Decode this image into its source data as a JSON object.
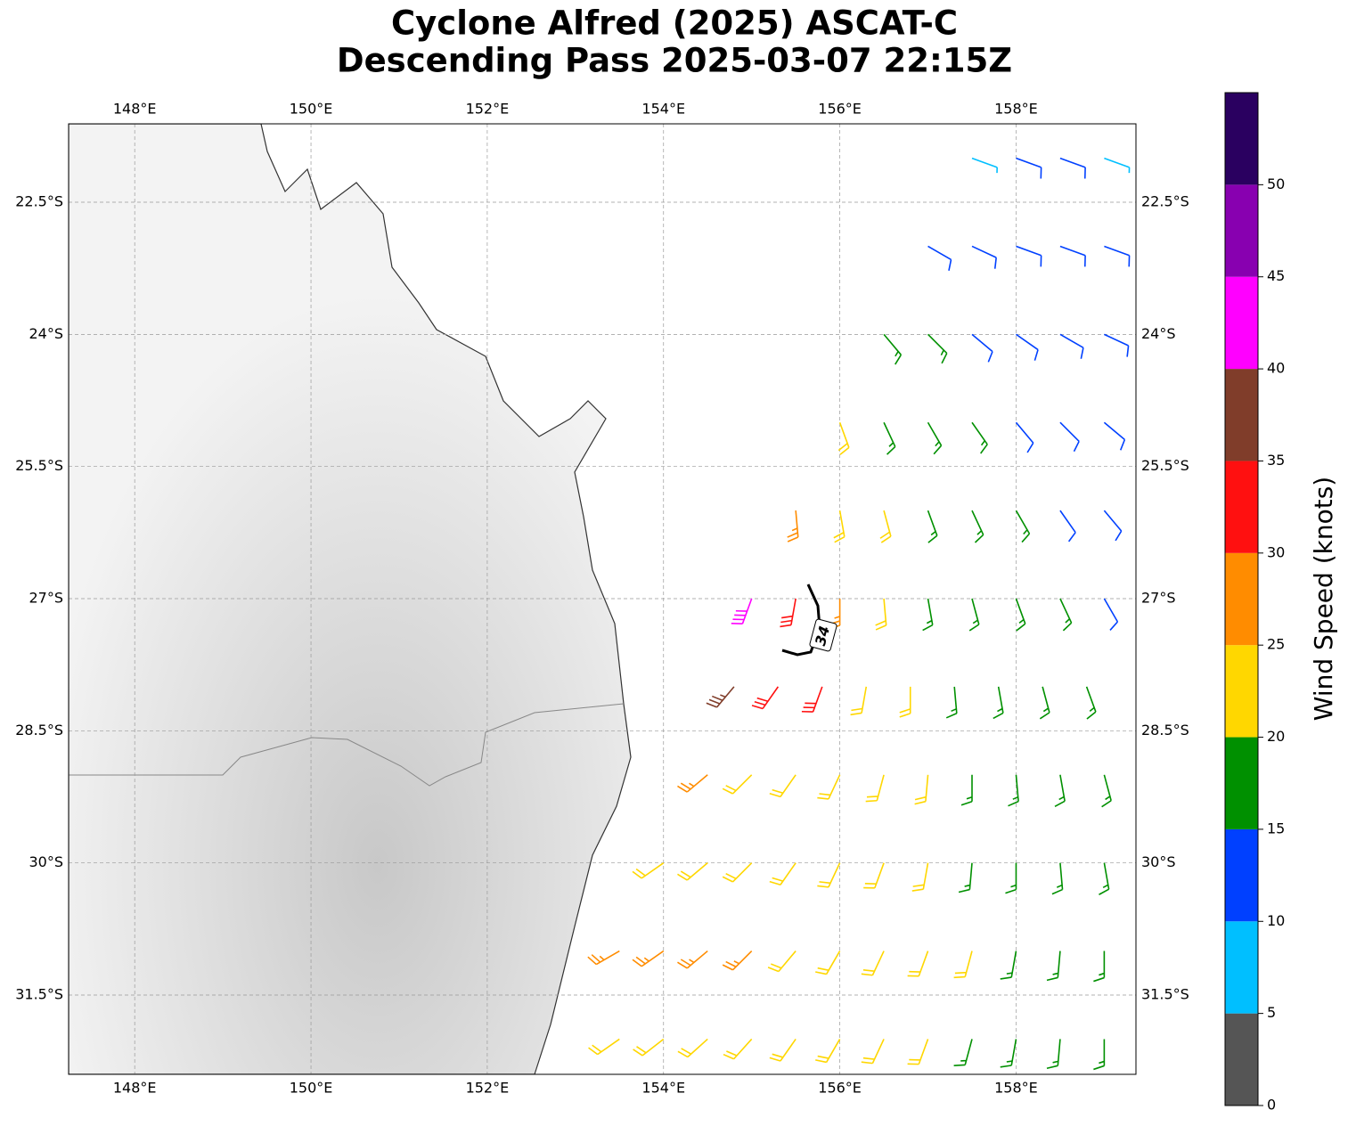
{
  "title": [
    "Cyclone Alfred (2025) ASCAT-C",
    "Descending Pass 2025-03-07 22:15Z"
  ],
  "xlim": [
    147.25,
    159.36
  ],
  "ylim": [
    -32.4,
    -21.61
  ],
  "xticks": [
    {
      "value": 148,
      "label": "148°E"
    },
    {
      "value": 150,
      "label": "150°E"
    },
    {
      "value": 152,
      "label": "152°E"
    },
    {
      "value": 154,
      "label": "154°E"
    },
    {
      "value": 156,
      "label": "156°E"
    },
    {
      "value": 158,
      "label": "158°E"
    }
  ],
  "yticks": [
    {
      "value": -22.5,
      "label": "22.5°S"
    },
    {
      "value": -24,
      "label": "24°S"
    },
    {
      "value": -25.5,
      "label": "25.5°S"
    },
    {
      "value": -27,
      "label": "27°S"
    },
    {
      "value": -28.5,
      "label": "28.5°S"
    },
    {
      "value": -30,
      "label": "30°S"
    },
    {
      "value": -31.5,
      "label": "31.5°S"
    }
  ],
  "contour_label": "34",
  "colorbar": {
    "label": "Wind Speed (knots)",
    "lim": [
      0,
      55
    ],
    "ticks": [
      0,
      5,
      10,
      15,
      20,
      25,
      30,
      35,
      40,
      45,
      50
    ],
    "colors": [
      "#555555",
      "#00bfff",
      "#0040ff",
      "#009000",
      "#ffd700",
      "#ff8c00",
      "#ff1010",
      "#803d2a",
      "#ff00ff",
      "#8800b0",
      "#2a0060"
    ]
  },
  "barbs": [
    [
      157.5,
      -22,
      8,
      110
    ],
    [
      158,
      -22,
      12,
      110
    ],
    [
      158.5,
      -22,
      12,
      110
    ],
    [
      159,
      -22,
      8,
      110
    ],
    [
      157,
      -23,
      13,
      120
    ],
    [
      157.5,
      -23,
      12,
      115
    ],
    [
      158,
      -23,
      12,
      110
    ],
    [
      158.5,
      -23,
      11,
      110
    ],
    [
      159,
      -23,
      12,
      110
    ],
    [
      156.5,
      -24,
      17,
      140
    ],
    [
      157,
      -24,
      16,
      135
    ],
    [
      157.5,
      -24,
      14,
      130
    ],
    [
      158,
      -24,
      13,
      125
    ],
    [
      158.5,
      -24,
      13,
      120
    ],
    [
      159,
      -24,
      12,
      115
    ],
    [
      156,
      -25,
      22,
      160
    ],
    [
      156.5,
      -25,
      18,
      155
    ],
    [
      157,
      -25,
      17,
      150
    ],
    [
      157.5,
      -25,
      16,
      145
    ],
    [
      158,
      -25,
      14,
      140
    ],
    [
      158.5,
      -25,
      13,
      135
    ],
    [
      159,
      -25,
      12,
      130
    ],
    [
      155.5,
      -26,
      28,
      175
    ],
    [
      156,
      -26,
      24,
      170
    ],
    [
      156.5,
      -26,
      21,
      165
    ],
    [
      157,
      -26,
      18,
      160
    ],
    [
      157.5,
      -26,
      17,
      155
    ],
    [
      158,
      -26,
      16,
      150
    ],
    [
      158.5,
      -26,
      13,
      145
    ],
    [
      159,
      -26,
      12,
      140
    ],
    [
      155,
      -27,
      42,
      200
    ],
    [
      155.5,
      -27,
      32,
      190
    ],
    [
      156,
      -27,
      27,
      180
    ],
    [
      156.5,
      -27,
      22,
      175
    ],
    [
      157,
      -27,
      19,
      170
    ],
    [
      157.5,
      -27,
      17,
      165
    ],
    [
      158,
      -27,
      16,
      160
    ],
    [
      158.5,
      -27,
      15,
      155
    ],
    [
      159,
      -27,
      13,
      150
    ],
    [
      154.8,
      -28,
      38,
      220
    ],
    [
      155.3,
      -28,
      33,
      215
    ],
    [
      155.8,
      -28,
      30,
      200
    ],
    [
      156.3,
      -28,
      24,
      190
    ],
    [
      156.8,
      -28,
      21,
      180
    ],
    [
      157.3,
      -28,
      19,
      175
    ],
    [
      157.8,
      -28,
      17,
      170
    ],
    [
      158.3,
      -28,
      16,
      165
    ],
    [
      158.8,
      -28,
      15,
      160
    ],
    [
      154.5,
      -29,
      26,
      230
    ],
    [
      155,
      -29,
      24,
      225
    ],
    [
      155.5,
      -29,
      23,
      215
    ],
    [
      156,
      -29,
      22,
      205
    ],
    [
      156.5,
      -29,
      21,
      195
    ],
    [
      157,
      -29,
      20,
      185
    ],
    [
      157.5,
      -29,
      18,
      180
    ],
    [
      158,
      -29,
      17,
      175
    ],
    [
      158.5,
      -29,
      16,
      170
    ],
    [
      159,
      -29,
      16,
      165
    ],
    [
      154,
      -30,
      23,
      235
    ],
    [
      154.5,
      -30,
      22,
      230
    ],
    [
      155,
      -30,
      22,
      225
    ],
    [
      155.5,
      -30,
      21,
      215
    ],
    [
      156,
      -30,
      21,
      205
    ],
    [
      156.5,
      -30,
      20,
      200
    ],
    [
      157,
      -30,
      20,
      190
    ],
    [
      157.5,
      -30,
      19,
      185
    ],
    [
      158,
      -30,
      18,
      180
    ],
    [
      158.5,
      -30,
      17,
      175
    ],
    [
      159,
      -30,
      17,
      170
    ],
    [
      153.5,
      -31,
      26,
      240
    ],
    [
      154,
      -31,
      27,
      235
    ],
    [
      154.5,
      -31,
      26,
      230
    ],
    [
      155,
      -31,
      25,
      225
    ],
    [
      155.5,
      -31,
      23,
      220
    ],
    [
      156,
      -31,
      22,
      210
    ],
    [
      156.5,
      -31,
      21,
      205
    ],
    [
      157,
      -31,
      21,
      200
    ],
    [
      157.5,
      -31,
      20,
      195
    ],
    [
      158,
      -31,
      19,
      190
    ],
    [
      158.5,
      -31,
      18,
      185
    ],
    [
      159,
      -31,
      17,
      180
    ],
    [
      153.5,
      -32,
      22,
      235
    ],
    [
      154,
      -32,
      23,
      232
    ],
    [
      154.5,
      -32,
      22,
      228
    ],
    [
      155,
      -32,
      22,
      222
    ],
    [
      155.5,
      -32,
      21,
      215
    ],
    [
      156,
      -32,
      21,
      210
    ],
    [
      156.5,
      -32,
      20,
      205
    ],
    [
      157,
      -32,
      20,
      200
    ],
    [
      157.5,
      -32,
      19,
      195
    ],
    [
      158,
      -32,
      18,
      190
    ],
    [
      158.5,
      -32,
      17,
      185
    ],
    [
      159,
      -32,
      16,
      180
    ]
  ]
}
